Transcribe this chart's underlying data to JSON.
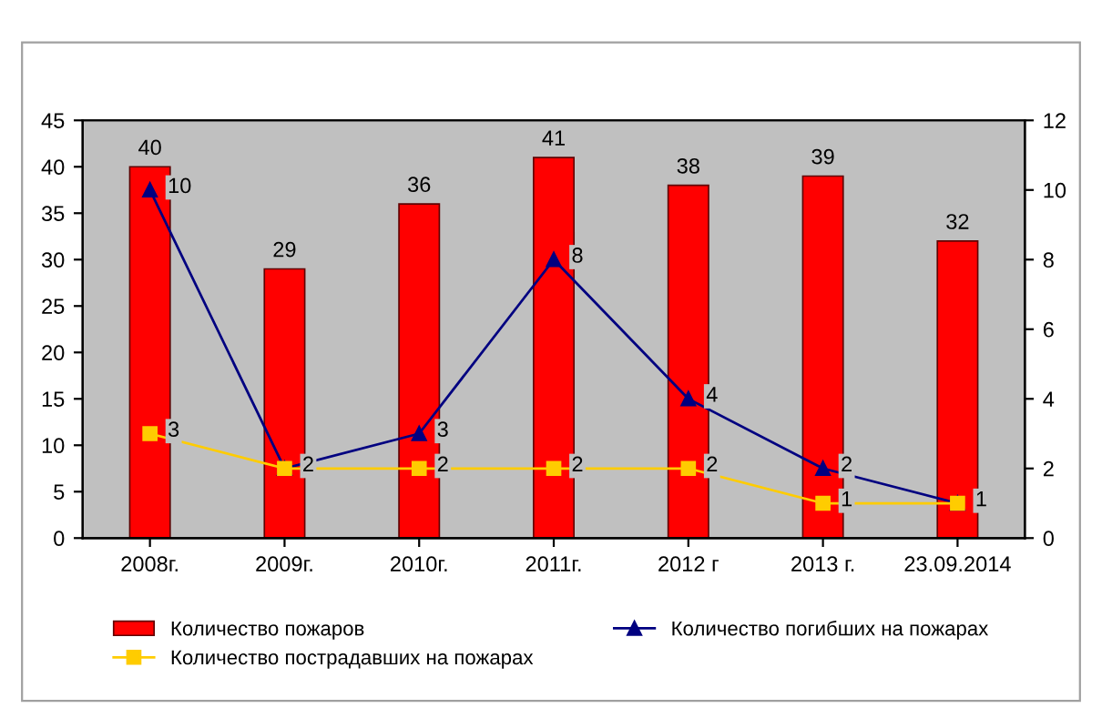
{
  "chart_data": {
    "type": "bar",
    "categories": [
      "2008г.",
      "2009г.",
      "2010г.",
      "2011г.",
      "2012 г",
      "2013 г.",
      "23.09.2014"
    ],
    "series": [
      {
        "name": "Количество пожаров",
        "color": "#ff0000",
        "values": [
          40,
          29,
          36,
          41,
          38,
          39,
          32
        ],
        "value_labels": [
          "40",
          "29",
          "36",
          "41",
          "38",
          "39",
          "32"
        ]
      },
      {
        "name": "Количество погибших на пожарах",
        "type": "line",
        "axis": "y2",
        "marker": "triangle",
        "color": "#000080",
        "values": [
          10,
          2,
          3,
          8,
          4,
          2,
          1
        ],
        "value_labels": [
          "10",
          "2",
          "3",
          "8",
          "4",
          "2",
          "1"
        ]
      },
      {
        "name": "Количество пострадавших на пожарах",
        "type": "line",
        "axis": "y2",
        "marker": "square",
        "color": "#ffcc00",
        "values": [
          3,
          2,
          2,
          2,
          2,
          1,
          1
        ],
        "value_labels": [
          "3",
          null,
          "2",
          "2",
          "2",
          "1",
          null
        ]
      }
    ],
    "ylim": [
      0,
      45
    ],
    "yticks": [
      0,
      5,
      10,
      15,
      20,
      25,
      30,
      35,
      40,
      45
    ],
    "y2lim": [
      0,
      12
    ],
    "y2ticks": [
      0,
      2,
      4,
      6,
      8,
      10,
      12
    ],
    "grid": false,
    "legend": "bottom",
    "line_style": "solid"
  }
}
